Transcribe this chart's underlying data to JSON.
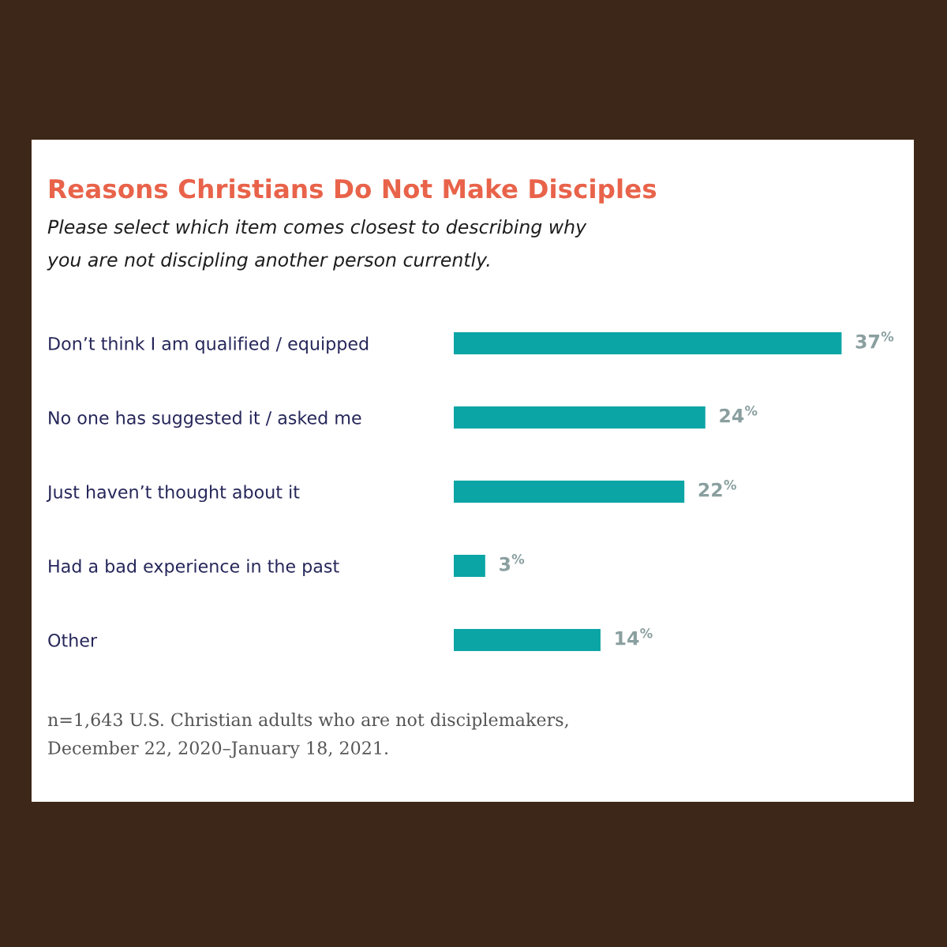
{
  "chart_data": {
    "type": "bar",
    "orientation": "horizontal",
    "title": "Reasons Christians Do Not Make Disciples",
    "subtitle": "Please select which item comes closest to describing why\nyou are not discipling another person currently.",
    "categories": [
      "Don’t think I am qualified / equipped",
      "No one has suggested it / asked me",
      "Just haven’t thought about it",
      "Had a bad experience in the past",
      "Other"
    ],
    "values": [
      37,
      24,
      22,
      3,
      14
    ],
    "color": "#0ba5a5",
    "value_labels": [
      "37$^{%}$",
      "24$^{%}$",
      "22$^{%}$",
      "3$^{%}$",
      "14$^{%}$"
    ],
    "tick_labels": "y",
    "annotations": [
      "n=1,643 U.S. Christian adults who are not disciplemakers,\nDecember 22, 2020–January 18, 2021."
    ]
  }
}
